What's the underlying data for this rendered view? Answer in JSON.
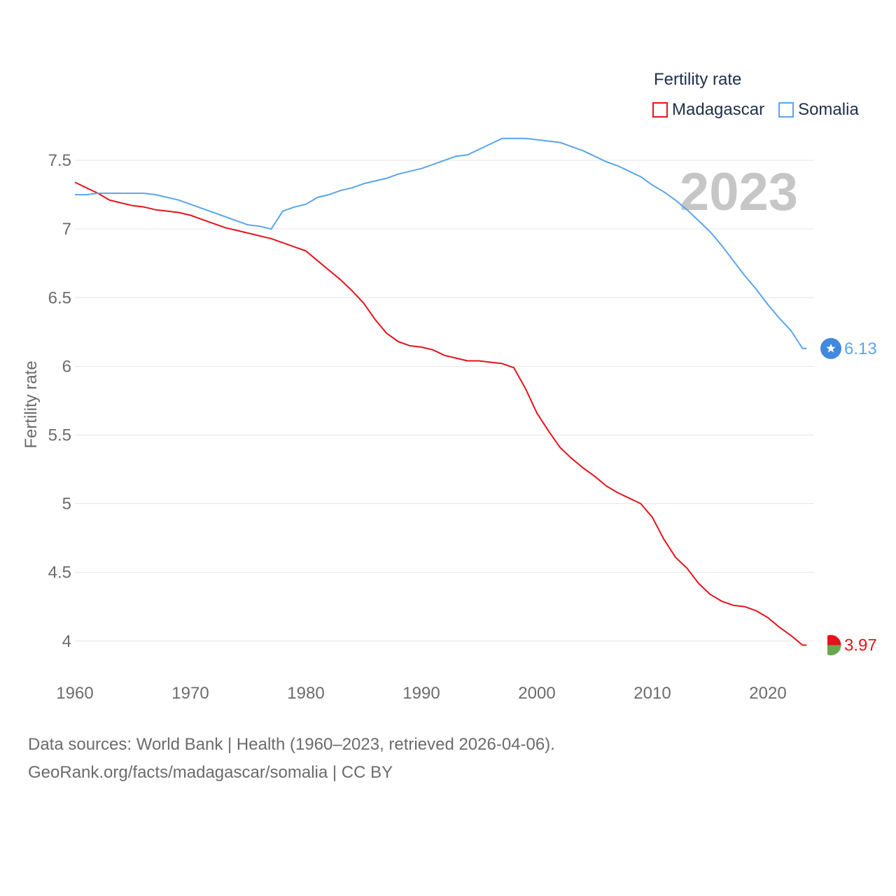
{
  "legend": {
    "title": "Fertility rate",
    "items": [
      {
        "label": "Madagascar",
        "color": "#e3141b"
      },
      {
        "label": "Somalia",
        "color": "#5aa5ea"
      }
    ]
  },
  "year_label": "2023",
  "sources": {
    "line1": "Data sources: World Bank | Health (1960–2023, retrieved 2026-04-06).",
    "line2": "GeoRank.org/facts/madagascar/somalia | CC BY"
  },
  "chart_data": {
    "type": "line",
    "title": "",
    "xlabel": "",
    "ylabel": "Fertility rate",
    "xlim": [
      1960,
      2024
    ],
    "ylim": [
      3.8,
      7.75
    ],
    "x_ticks": [
      "1960",
      "1970",
      "1980",
      "1990",
      "2000",
      "2010",
      "2020"
    ],
    "y_ticks": [
      "4",
      "4.5",
      "5",
      "5.5",
      "6",
      "6.5",
      "7",
      "7.5"
    ],
    "grid": true,
    "x": [
      1960,
      1961,
      1962,
      1963,
      1964,
      1965,
      1966,
      1967,
      1968,
      1969,
      1970,
      1971,
      1972,
      1973,
      1974,
      1975,
      1976,
      1977,
      1978,
      1979,
      1980,
      1981,
      1982,
      1983,
      1984,
      1985,
      1986,
      1987,
      1988,
      1989,
      1990,
      1991,
      1992,
      1993,
      1994,
      1995,
      1996,
      1997,
      1998,
      1999,
      2000,
      2001,
      2002,
      2003,
      2004,
      2005,
      2006,
      2007,
      2008,
      2009,
      2010,
      2011,
      2012,
      2013,
      2014,
      2015,
      2016,
      2017,
      2018,
      2019,
      2020,
      2021,
      2022,
      2023
    ],
    "series": [
      {
        "name": "Madagascar",
        "color": "#e3141b",
        "end_label": "3.97",
        "values": [
          7.34,
          7.3,
          7.26,
          7.21,
          7.19,
          7.17,
          7.16,
          7.14,
          7.13,
          7.12,
          7.1,
          7.07,
          7.04,
          7.01,
          6.99,
          6.97,
          6.95,
          6.93,
          6.9,
          6.87,
          6.84,
          6.77,
          6.7,
          6.63,
          6.55,
          6.46,
          6.34,
          6.24,
          6.18,
          6.15,
          6.14,
          6.12,
          6.08,
          6.06,
          6.04,
          6.04,
          6.03,
          6.02,
          5.99,
          5.84,
          5.66,
          5.53,
          5.41,
          5.33,
          5.26,
          5.2,
          5.13,
          5.08,
          5.04,
          5.0,
          4.9,
          4.74,
          4.61,
          4.53,
          4.42,
          4.34,
          4.29,
          4.26,
          4.25,
          4.22,
          4.17,
          4.1,
          4.04,
          3.97
        ]
      },
      {
        "name": "Somalia",
        "color": "#5aa5ea",
        "end_label": "6.13",
        "values": [
          7.25,
          7.25,
          7.26,
          7.26,
          7.26,
          7.26,
          7.26,
          7.25,
          7.23,
          7.21,
          7.18,
          7.15,
          7.12,
          7.09,
          7.06,
          7.03,
          7.02,
          7.0,
          7.13,
          7.16,
          7.18,
          7.23,
          7.25,
          7.28,
          7.3,
          7.33,
          7.35,
          7.37,
          7.4,
          7.42,
          7.44,
          7.47,
          7.5,
          7.53,
          7.54,
          7.58,
          7.62,
          7.66,
          7.66,
          7.66,
          7.65,
          7.64,
          7.63,
          7.6,
          7.57,
          7.53,
          7.49,
          7.46,
          7.42,
          7.38,
          7.32,
          7.27,
          7.21,
          7.14,
          7.06,
          6.98,
          6.88,
          6.77,
          6.66,
          6.56,
          6.45,
          6.35,
          6.26,
          6.13
        ]
      }
    ]
  }
}
